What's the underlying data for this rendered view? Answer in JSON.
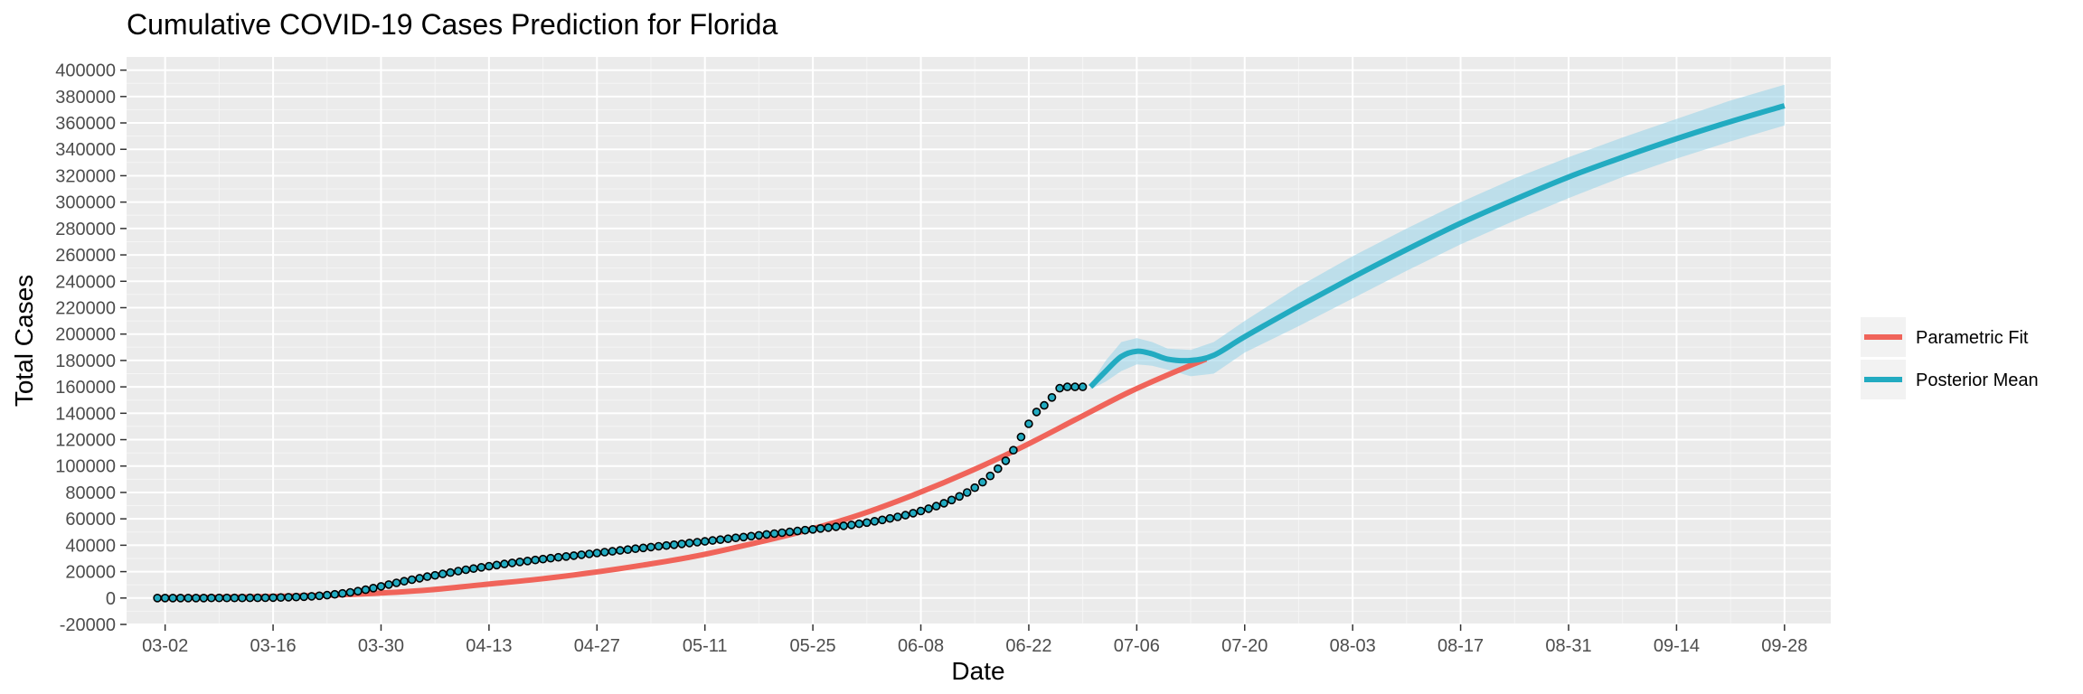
{
  "chart_data": {
    "type": "line",
    "title": "Cumulative COVID-19 Cases Prediction for Florida",
    "xlabel": "Date",
    "ylabel": "Total Cases",
    "x_tick_labels": [
      "03-02",
      "03-16",
      "03-30",
      "04-13",
      "04-27",
      "05-11",
      "05-25",
      "06-08",
      "06-22",
      "07-06",
      "07-20",
      "08-03",
      "08-17",
      "08-31",
      "09-14",
      "09-28"
    ],
    "y_ticks": [
      -20000,
      0,
      20000,
      40000,
      60000,
      80000,
      100000,
      120000,
      140000,
      160000,
      180000,
      200000,
      220000,
      240000,
      260000,
      280000,
      300000,
      320000,
      340000,
      360000,
      380000,
      400000
    ],
    "ylim": [
      -20000,
      410000
    ],
    "x_domain_days": [
      "02-26",
      "10-04"
    ],
    "grid": true,
    "legend_position": "right",
    "legend": [
      {
        "label": "Parametric Fit",
        "color": "#f0645a"
      },
      {
        "label": "Posterior Mean",
        "color": "#22abc1"
      }
    ],
    "series": [
      {
        "name": "Parametric Fit",
        "color": "#f0645a",
        "x": [
          "03-01",
          "03-15",
          "03-22",
          "03-29",
          "04-05",
          "04-12",
          "04-19",
          "04-26",
          "05-03",
          "05-10",
          "05-17",
          "05-24",
          "05-31",
          "06-07",
          "06-14",
          "06-21",
          "06-28",
          "07-05",
          "07-12",
          "07-15"
        ],
        "y": [
          0,
          1000,
          2000,
          3500,
          6000,
          10000,
          14000,
          19000,
          25000,
          32000,
          41000,
          51000,
          63000,
          78000,
          95000,
          114000,
          135000,
          156000,
          174000,
          181000
        ]
      },
      {
        "name": "Posterior Mean",
        "color": "#22abc1",
        "x": [
          "06-30",
          "07-02",
          "07-04",
          "07-06",
          "07-08",
          "07-10",
          "07-13",
          "07-16",
          "07-20",
          "07-27",
          "08-03",
          "08-10",
          "08-17",
          "08-24",
          "08-31",
          "09-07",
          "09-14",
          "09-21",
          "09-28"
        ],
        "y": [
          160000,
          172000,
          183000,
          187000,
          185000,
          181000,
          180000,
          184000,
          198000,
          221000,
          243000,
          264000,
          284000,
          302000,
          319000,
          334000,
          348000,
          361000,
          373000
        ],
        "ci_upper": [
          162000,
          180000,
          194000,
          197000,
          194000,
          189000,
          188000,
          194000,
          210000,
          236000,
          259000,
          280000,
          300000,
          318000,
          334000,
          349000,
          363000,
          377000,
          389000
        ],
        "ci_lower": [
          158000,
          164000,
          172000,
          177000,
          176000,
          173000,
          168000,
          170000,
          186000,
          206000,
          227000,
          248000,
          268000,
          286000,
          303000,
          319000,
          333000,
          346000,
          358000
        ]
      }
    ],
    "observed": {
      "name": "Observed cases",
      "fill": "#22abc1",
      "start": "03-01",
      "end": "06-30",
      "y": [
        2,
        4,
        6,
        9,
        12,
        18,
        25,
        30,
        35,
        40,
        50,
        70,
        100,
        150,
        220,
        300,
        420,
        600,
        750,
        1000,
        1300,
        1700,
        2200,
        2800,
        3500,
        4300,
        5200,
        6300,
        7500,
        8800,
        10200,
        11500,
        12700,
        13900,
        15000,
        16200,
        17200,
        18300,
        19300,
        20400,
        21400,
        22300,
        23300,
        24100,
        25000,
        25800,
        26600,
        27400,
        28100,
        28800,
        29500,
        30200,
        30900,
        31500,
        32100,
        32800,
        33400,
        34100,
        34800,
        35400,
        36100,
        36700,
        37400,
        38000,
        38600,
        39200,
        39800,
        40400,
        41000,
        41700,
        42300,
        42900,
        43600,
        44200,
        44900,
        45600,
        46200,
        46900,
        47500,
        48200,
        48800,
        49500,
        50100,
        50800,
        51400,
        52000,
        52700,
        53300,
        54000,
        54700,
        55400,
        56300,
        57200,
        58200,
        59200,
        60300,
        61500,
        62800,
        64300,
        65900,
        67700,
        69600,
        71800,
        74300,
        77000,
        80000,
        83600,
        87800,
        92500,
        98000,
        104000,
        112000,
        122000,
        132000,
        141000,
        146000,
        152000,
        159000,
        160000,
        160000,
        160000
      ]
    }
  }
}
